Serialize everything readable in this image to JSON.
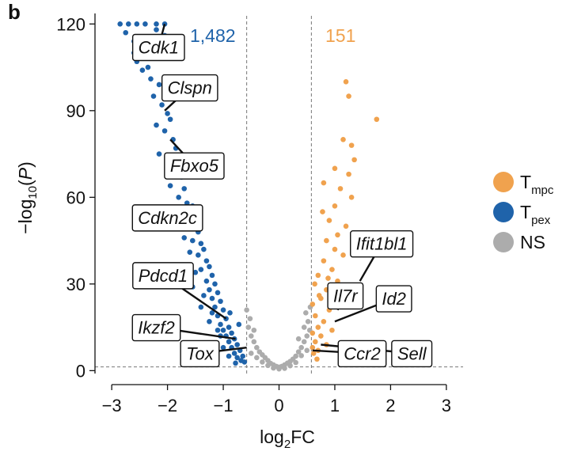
{
  "panel_letter": "b",
  "chart_data": {
    "type": "scatter",
    "title": "",
    "xlabel": "log2FC",
    "ylabel": "-log10(P)",
    "xlim": [
      -3.3,
      3.3
    ],
    "ylim": [
      -1,
      122
    ],
    "xticks": [
      -3,
      -2,
      -1,
      0,
      1,
      2,
      3
    ],
    "xtick_labels": [
      "−3",
      "−2",
      "−1",
      "0",
      "1",
      "2",
      "3"
    ],
    "yticks": [
      0,
      30,
      60,
      90,
      120
    ],
    "ytick_labels": [
      "0",
      "30",
      "60",
      "90",
      "120"
    ],
    "thresholds": {
      "x": [
        -0.58,
        0.58
      ],
      "y": 1.3
    },
    "counts": {
      "down": "1,482",
      "up": "151"
    },
    "colors": {
      "Tmpc": "#F0A24E",
      "Tpex": "#1F63AA",
      "NS": "#ACACAC"
    },
    "legend": [
      {
        "key": "Tmpc",
        "main": "T",
        "sub": "mpc",
        "color": "#F0A24E"
      },
      {
        "key": "Tpex",
        "main": "T",
        "sub": "pex",
        "color": "#1F63AA"
      },
      {
        "key": "NS",
        "main": "NS",
        "sub": "",
        "color": "#ACACAC"
      }
    ],
    "series": [
      {
        "name": "Tpex",
        "color": "#1F63AA",
        "points": [
          [
            -2.85,
            120
          ],
          [
            -2.7,
            120
          ],
          [
            -2.55,
            120
          ],
          [
            -2.4,
            120
          ],
          [
            -2.2,
            120
          ],
          [
            -2.05,
            120
          ],
          [
            -2.75,
            117
          ],
          [
            -2.6,
            114
          ],
          [
            -2.5,
            111
          ],
          [
            -2.35,
            112
          ],
          [
            -2.2,
            118
          ],
          [
            -2.05,
            116
          ],
          [
            -2.55,
            107
          ],
          [
            -2.45,
            104
          ],
          [
            -2.3,
            101
          ],
          [
            -2.15,
            99
          ],
          [
            -2.25,
            95
          ],
          [
            -2.1,
            92
          ],
          [
            -2.0,
            89
          ],
          [
            -1.95,
            87
          ],
          [
            -2.2,
            85
          ],
          [
            -2.05,
            83
          ],
          [
            -1.9,
            80
          ],
          [
            -1.85,
            77
          ],
          [
            -2.15,
            75
          ],
          [
            -2.0,
            72
          ],
          [
            -1.8,
            70
          ],
          [
            -1.75,
            67
          ],
          [
            -1.95,
            64
          ],
          [
            -1.7,
            63
          ],
          [
            -1.8,
            60
          ],
          [
            -1.65,
            58
          ],
          [
            -1.55,
            57
          ],
          [
            -1.7,
            55
          ],
          [
            -1.6,
            52
          ],
          [
            -1.5,
            50
          ],
          [
            -1.45,
            48
          ],
          [
            -1.55,
            45
          ],
          [
            -1.4,
            44
          ],
          [
            -1.35,
            42
          ],
          [
            -1.45,
            40
          ],
          [
            -1.3,
            38
          ],
          [
            -1.25,
            36
          ],
          [
            -1.4,
            35
          ],
          [
            -1.2,
            33
          ],
          [
            -1.3,
            31
          ],
          [
            -1.15,
            30
          ],
          [
            -1.25,
            28
          ],
          [
            -1.1,
            27
          ],
          [
            -1.2,
            25
          ],
          [
            -1.05,
            24
          ],
          [
            -1.15,
            22
          ],
          [
            -1.0,
            21
          ],
          [
            -1.1,
            19
          ],
          [
            -0.95,
            18
          ],
          [
            -1.05,
            16
          ],
          [
            -0.9,
            15
          ],
          [
            -1.0,
            14
          ],
          [
            -0.85,
            13
          ],
          [
            -0.95,
            12
          ],
          [
            -0.8,
            11
          ],
          [
            -0.9,
            10
          ],
          [
            -0.75,
            9
          ],
          [
            -0.85,
            8
          ],
          [
            -0.7,
            7
          ],
          [
            -0.8,
            6
          ],
          [
            -0.65,
            5
          ],
          [
            -0.75,
            4.5
          ],
          [
            -0.68,
            3.5
          ],
          [
            -0.62,
            3
          ],
          [
            -1.05,
            12
          ],
          [
            -1.2,
            20
          ],
          [
            -1.35,
            26
          ],
          [
            -1.5,
            34
          ],
          [
            -1.6,
            41
          ],
          [
            -1.7,
            46
          ],
          [
            -1.85,
            54
          ],
          [
            -2.35,
            105
          ],
          [
            -2.6,
            110
          ],
          [
            -1.0,
            8
          ],
          [
            -0.9,
            5
          ],
          [
            -1.1,
            14
          ],
          [
            -1.25,
            17
          ],
          [
            -1.4,
            22
          ],
          [
            -0.78,
            2.6
          ],
          [
            -0.72,
            16
          ],
          [
            -1.18,
            9
          ],
          [
            -0.88,
            20
          ],
          [
            -1.55,
            29
          ],
          [
            -1.65,
            36
          ]
        ]
      },
      {
        "name": "Tmpc",
        "color": "#F0A24E",
        "points": [
          [
            1.2,
            100
          ],
          [
            1.75,
            87
          ],
          [
            1.25,
            95
          ],
          [
            1.15,
            80
          ],
          [
            1.3,
            78
          ],
          [
            1.35,
            73
          ],
          [
            0.8,
            65
          ],
          [
            1.0,
            70
          ],
          [
            1.25,
            68
          ],
          [
            1.1,
            63
          ],
          [
            1.0,
            57
          ],
          [
            1.3,
            60
          ],
          [
            0.9,
            52
          ],
          [
            1.2,
            50
          ],
          [
            0.85,
            45
          ],
          [
            1.0,
            42
          ],
          [
            1.15,
            40
          ],
          [
            0.8,
            38
          ],
          [
            0.95,
            35
          ],
          [
            0.7,
            33
          ],
          [
            1.05,
            31
          ],
          [
            0.85,
            28
          ],
          [
            0.75,
            25
          ],
          [
            0.6,
            23
          ],
          [
            0.9,
            21
          ],
          [
            0.65,
            19
          ],
          [
            0.8,
            17
          ],
          [
            0.7,
            15
          ],
          [
            0.6,
            13
          ],
          [
            0.75,
            12
          ],
          [
            0.65,
            10
          ],
          [
            0.6,
            8
          ],
          [
            0.85,
            9
          ],
          [
            0.7,
            7
          ],
          [
            0.62,
            6
          ],
          [
            0.95,
            14
          ],
          [
            0.68,
            4
          ],
          [
            0.72,
            26
          ],
          [
            0.88,
            32
          ],
          [
            1.05,
            47
          ],
          [
            0.78,
            55
          ],
          [
            0.64,
            30
          ]
        ]
      },
      {
        "name": "NS",
        "color": "#ACACAC",
        "points": [
          [
            -0.5,
            12
          ],
          [
            -0.45,
            10
          ],
          [
            -0.4,
            8
          ],
          [
            -0.35,
            6.5
          ],
          [
            -0.3,
            5.5
          ],
          [
            -0.25,
            4.5
          ],
          [
            -0.2,
            3.5
          ],
          [
            -0.15,
            2.5
          ],
          [
            -0.1,
            2
          ],
          [
            -0.05,
            1.5
          ],
          [
            0.0,
            1.2
          ],
          [
            0.05,
            1.5
          ],
          [
            0.1,
            2
          ],
          [
            0.15,
            2.6
          ],
          [
            0.2,
            3.2
          ],
          [
            0.25,
            4
          ],
          [
            0.3,
            5
          ],
          [
            0.35,
            6.5
          ],
          [
            0.4,
            8
          ],
          [
            0.45,
            10
          ],
          [
            0.5,
            12
          ],
          [
            0.55,
            14
          ],
          [
            0.52,
            17
          ],
          [
            0.48,
            20
          ],
          [
            0.56,
            22
          ],
          [
            -0.55,
            15
          ],
          [
            -0.52,
            18
          ],
          [
            -0.58,
            21
          ],
          [
            -0.3,
            3
          ],
          [
            -0.2,
            1.8
          ],
          [
            0.2,
            1.7
          ],
          [
            0.3,
            2.8
          ],
          [
            -0.4,
            4.5
          ],
          [
            0.4,
            5.2
          ],
          [
            0.0,
            0.6
          ],
          [
            -0.1,
            0.9
          ],
          [
            0.1,
            0.8
          ],
          [
            -0.5,
            6
          ],
          [
            0.5,
            7
          ],
          [
            -0.45,
            14
          ],
          [
            0.45,
            15
          ],
          [
            0.35,
            11
          ]
        ]
      }
    ],
    "labels": [
      {
        "gene": "Cdk1",
        "point": [
          -2.05,
          120
        ],
        "box_center": [
          -2.16,
          112
        ]
      },
      {
        "gene": "Clspn",
        "point": [
          -2.05,
          90
        ],
        "box_center": [
          -1.6,
          98
        ]
      },
      {
        "gene": "Fbxo5",
        "point": [
          -1.95,
          80
        ],
        "box_center": [
          -1.52,
          71
        ]
      },
      {
        "gene": "Cdkn2c",
        "point": [
          -1.55,
          55
        ],
        "box_center": [
          -2.0,
          53
        ]
      },
      {
        "gene": "Pdcd1",
        "point": [
          -0.95,
          18
        ],
        "box_center": [
          -2.08,
          33
        ]
      },
      {
        "gene": "Ikzf2",
        "point": [
          -0.78,
          11
        ],
        "box_center": [
          -2.2,
          15
        ]
      },
      {
        "gene": "Tox",
        "point": [
          -0.58,
          8
        ],
        "box_center": [
          -1.42,
          6
        ]
      },
      {
        "gene": "Ifit1bl1",
        "point": [
          1.45,
          31
        ],
        "box_center": [
          1.84,
          44
        ]
      },
      {
        "gene": "Il7r",
        "point": [
          1.05,
          21
        ],
        "box_center": [
          1.19,
          26
        ]
      },
      {
        "gene": "Id2",
        "point": [
          1.0,
          17
        ],
        "box_center": [
          2.06,
          25
        ]
      },
      {
        "gene": "Ccr2",
        "point": [
          0.6,
          7
        ],
        "box_center": [
          1.49,
          6
        ]
      },
      {
        "gene": "Sell",
        "point": [
          0.75,
          9
        ],
        "box_center": [
          2.38,
          6
        ]
      }
    ]
  }
}
